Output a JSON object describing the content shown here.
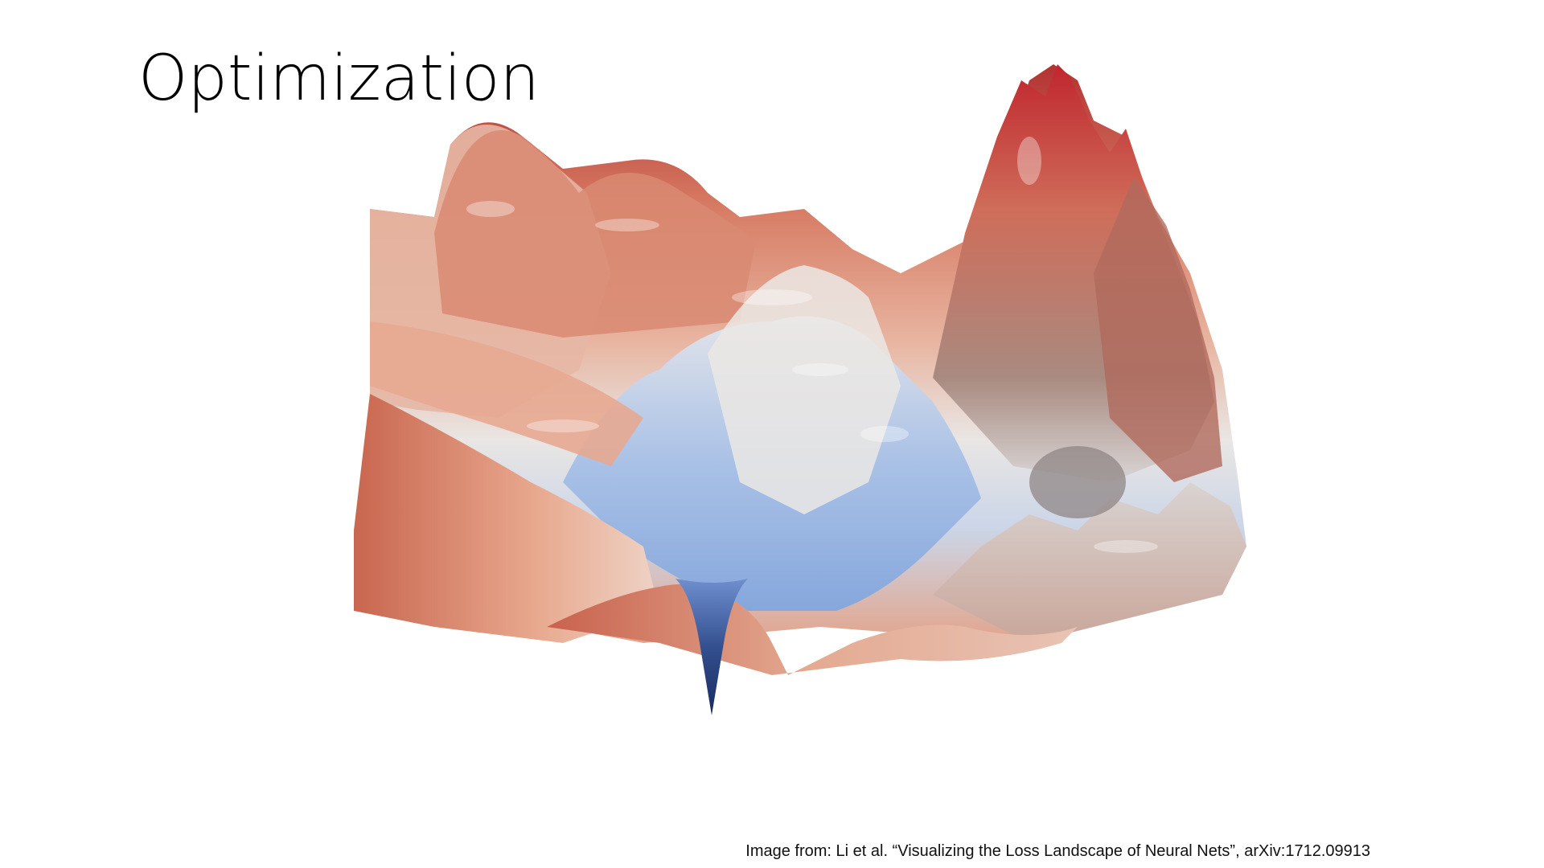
{
  "slide": {
    "title": "Optimization",
    "caption": "Image from: Li et al. “Visualizing the Loss Landscape of Neural Nets”, arXiv:1712.09913"
  },
  "figure": {
    "subject": "loss-landscape-surface",
    "colors": {
      "high": "#b83a3a",
      "mid_high": "#e09a7f",
      "mid": "#eae6e3",
      "low": "#7f9fd6",
      "minimum": "#1e3a7a"
    }
  }
}
